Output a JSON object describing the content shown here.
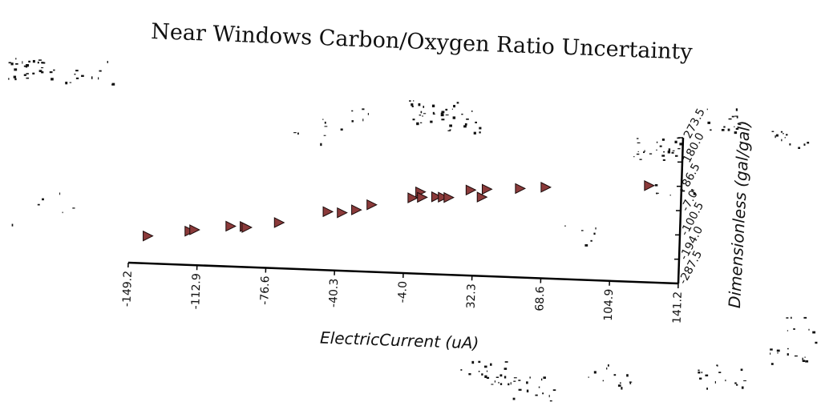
{
  "chart_data": {
    "type": "scatter",
    "title": "Near Windows Carbon/Oxygen Ratio Uncertainty",
    "xlabel": "ElectricCurrent (uA)",
    "ylabel": "Dimensionless (gal/gal)",
    "x_ticks": [
      "-149.2",
      "-112.9",
      "-76.6",
      "-40.3",
      "-4.0",
      "32.3",
      "68.6",
      "104.9",
      "141.2"
    ],
    "y_ticks": [
      "-287.5",
      "-194.0",
      "-100.5",
      "-7.0",
      "86.5",
      "180.0",
      "273.5"
    ],
    "xlim": [
      -149.2,
      141.2
    ],
    "ylim": [
      -287.5,
      273.5
    ],
    "marker": "triangle-right",
    "marker_color": "#8b3a3a",
    "grid": false,
    "points": [
      {
        "x": -139.5,
        "y": -182.0
      },
      {
        "x": -117.5,
        "y": -157.5
      },
      {
        "x": -115.0,
        "y": -151.5
      },
      {
        "x": -96.0,
        "y": -132.5
      },
      {
        "x": -88.5,
        "y": -131.5
      },
      {
        "x": -87.5,
        "y": -135.0
      },
      {
        "x": -70.5,
        "y": -111.5
      },
      {
        "x": -45.0,
        "y": -62.5
      },
      {
        "x": -37.5,
        "y": -64.5
      },
      {
        "x": -30.0,
        "y": -51.5
      },
      {
        "x": -22.0,
        "y": -29.5
      },
      {
        "x": -0.5,
        "y": 3.0
      },
      {
        "x": 3.5,
        "y": 27.0
      },
      {
        "x": 4.5,
        "y": 6.5
      },
      {
        "x": 12.0,
        "y": 10.5
      },
      {
        "x": 15.5,
        "y": 10.0
      },
      {
        "x": 18.5,
        "y": 9.5
      },
      {
        "x": 30.0,
        "y": 41.5
      },
      {
        "x": 36.0,
        "y": 16.0
      },
      {
        "x": 38.5,
        "y": 47.0
      },
      {
        "x": 56.0,
        "y": 54.5
      },
      {
        "x": 69.5,
        "y": 63.0
      },
      {
        "x": 124.0,
        "y": 84.5
      }
    ]
  }
}
